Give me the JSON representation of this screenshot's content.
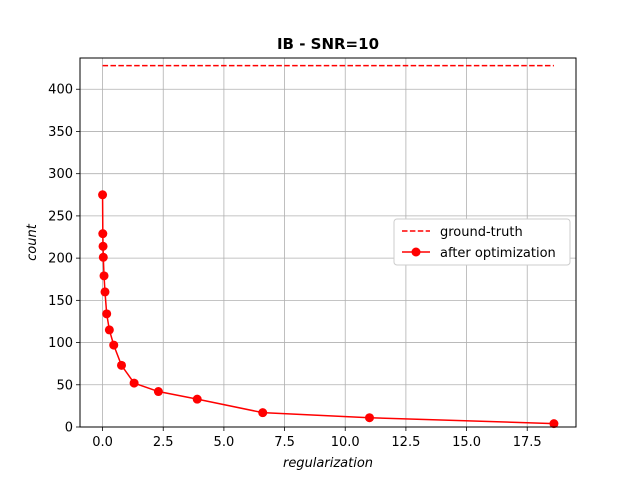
{
  "chart_data": {
    "type": "line",
    "title": "IB - SNR=10",
    "xlabel": "regularization",
    "ylabel": "count",
    "xlim": [
      -0.93,
      19.51
    ],
    "ylim": [
      0,
      437
    ],
    "x_ticks": [
      "0.0",
      "2.5",
      "5.0",
      "7.5",
      "10.0",
      "12.5",
      "15.0",
      "17.5"
    ],
    "y_ticks": [
      "0",
      "50",
      "100",
      "150",
      "200",
      "250",
      "300",
      "350",
      "400"
    ],
    "grid": true,
    "legend_position": "center-right",
    "series": [
      {
        "name": "ground-truth",
        "style": "dashed",
        "color": "#ff0000",
        "x": [
          0.0,
          18.6
        ],
        "y": [
          428,
          428
        ]
      },
      {
        "name": "after optimization",
        "style": "solid-markers",
        "color": "#ff0000",
        "x": [
          0.0,
          0.01,
          0.02,
          0.03,
          0.06,
          0.1,
          0.17,
          0.28,
          0.46,
          0.78,
          1.3,
          2.3,
          3.9,
          6.6,
          11.0,
          18.6
        ],
        "y": [
          275,
          229,
          214,
          201,
          179,
          160,
          134,
          115,
          97,
          73,
          52,
          42,
          33,
          17,
          11,
          4
        ]
      }
    ]
  }
}
